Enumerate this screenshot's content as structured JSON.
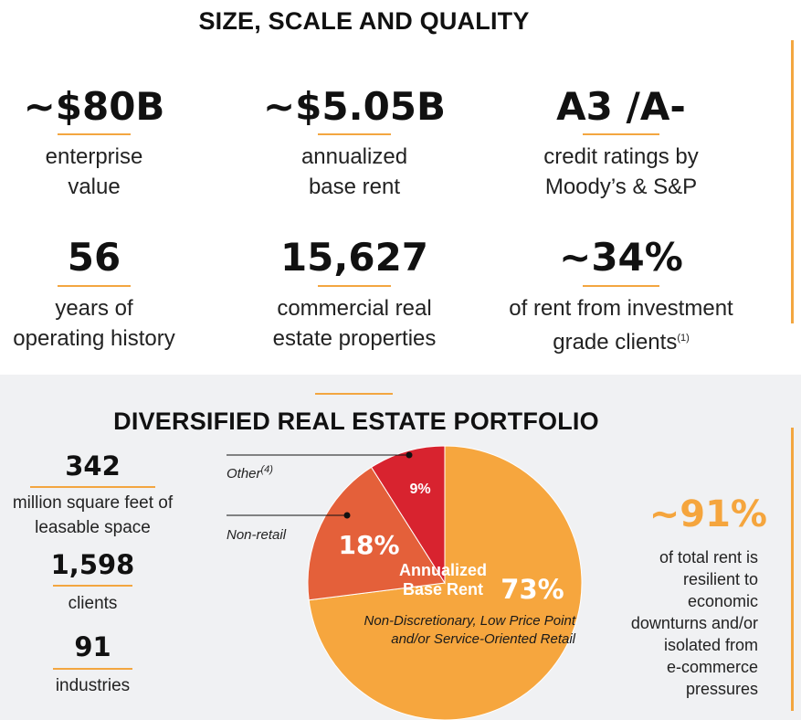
{
  "top": {
    "title": "SIZE, SCALE AND QUALITY",
    "stats": [
      {
        "value": "~$80B",
        "line1": "enterprise",
        "line2": "value"
      },
      {
        "value": "~$5.05B",
        "line1": "annualized",
        "line2": "base rent"
      },
      {
        "value": "A3 /A-",
        "line1": "credit ratings by",
        "line2": "Moody’s & S&P"
      },
      {
        "value": "56",
        "line1": "years of",
        "line2": "operating history"
      },
      {
        "value": "15,627",
        "line1": "commercial real",
        "line2": "estate properties"
      },
      {
        "value": "~34%",
        "line1": "of rent from investment",
        "line2": "grade clients",
        "footnote": "(1)"
      }
    ]
  },
  "bottom": {
    "title": "DIVERSIFIED REAL ESTATE PORTFOLIO",
    "left_stats": [
      {
        "value": "342",
        "line1": "million square feet of",
        "line2": "leasable space"
      },
      {
        "value": "1,598",
        "line1": "clients"
      },
      {
        "value": "91",
        "line1": "industries"
      }
    ],
    "right": {
      "value": "~91%",
      "lines": [
        "of total rent is",
        "resilient to",
        "economic",
        "downturns and/or",
        "isolated from",
        "e-commerce",
        "pressures"
      ]
    }
  },
  "chart_data": {
    "type": "pie",
    "title": "",
    "center_label_line1": "Annualized",
    "center_label_line2": "Base Rent",
    "slices": [
      {
        "label": "Non-Discretionary, Low Price Point and/or Service-Oriented Retail",
        "label_line1": "Non-Discretionary, Low Price Point",
        "label_line2": "and/or Service-Oriented Retail",
        "value": 73,
        "display": "73%",
        "color": "#f6a63e"
      },
      {
        "label": "Non-retail",
        "value": 18,
        "display": "18%",
        "color": "#e4603a"
      },
      {
        "label": "Other",
        "footnote": "(4)",
        "value": 9,
        "display": "9%",
        "color": "#d8232f"
      }
    ]
  },
  "colors": {
    "accent": "#f3a640",
    "orange_text": "#f5a53d",
    "panel_bg": "#f0f1f3"
  }
}
